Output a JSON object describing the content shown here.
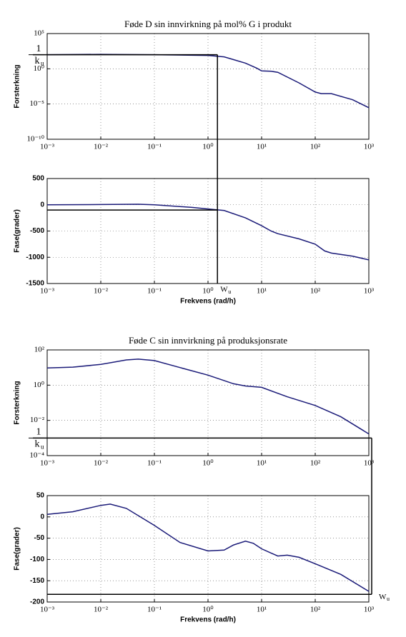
{
  "chart_data": [
    {
      "type": "line",
      "title": "Føde D sin innvirkning på mol% G i produkt",
      "ylabel": "Forsterkning",
      "xlog": true,
      "ylog": true,
      "grid": true,
      "color": "#1a1a78",
      "xlim": [
        0.001,
        1000
      ],
      "xticks": [
        {
          "value": 0.001,
          "label": "10⁻³"
        },
        {
          "value": 0.01,
          "label": "10⁻²"
        },
        {
          "value": 0.1,
          "label": "10⁻¹"
        },
        {
          "value": 1,
          "label": "10⁰"
        },
        {
          "value": 10,
          "label": "10¹"
        },
        {
          "value": 100,
          "label": "10²"
        },
        {
          "value": 1000,
          "label": "10³"
        }
      ],
      "ylim": [
        1e-10,
        100000
      ],
      "yticks": [
        {
          "value": 1e-10,
          "label": "10⁻¹⁰"
        },
        {
          "value": 1e-05,
          "label": "10⁻⁵"
        },
        {
          "value": 1,
          "label": "10⁰"
        },
        {
          "value": 100000,
          "label": "10⁵"
        }
      ],
      "x": [
        0.001,
        0.01,
        0.1,
        1,
        2,
        3,
        5,
        8,
        10,
        15,
        20,
        50,
        100,
        130,
        200,
        500,
        1000
      ],
      "values": [
        100,
        112,
        100,
        79,
        50,
        20,
        6.3,
        1.3,
        0.5,
        0.45,
        0.32,
        0.01,
        0.0005,
        0.0003,
        0.0003,
        4e-05,
        3e-06
      ],
      "ref": {
        "x": 1.5,
        "y": 100
      },
      "ref_label": {
        "num": "1",
        "den": "k",
        "sub": "u"
      }
    },
    {
      "type": "line",
      "xlabel": "Frekvens (rad/h)",
      "ylabel": "Fase(grader)",
      "xlog": true,
      "ylog": false,
      "grid": true,
      "color": "#1a1a78",
      "xlim": [
        0.001,
        1000
      ],
      "xticks": [
        {
          "value": 0.001,
          "label": "10⁻³"
        },
        {
          "value": 0.01,
          "label": "10⁻²"
        },
        {
          "value": 0.1,
          "label": "10⁻¹"
        },
        {
          "value": 1,
          "label": "10⁰"
        },
        {
          "value": 10,
          "label": "10¹"
        },
        {
          "value": 100,
          "label": "10²"
        },
        {
          "value": 1000,
          "label": "10³"
        }
      ],
      "ylim": [
        -1500,
        500
      ],
      "yticks": [
        -1500,
        -1000,
        -500,
        0,
        500
      ],
      "x": [
        0.001,
        0.01,
        0.05,
        0.1,
        0.5,
        1,
        2,
        5,
        10,
        15,
        20,
        50,
        100,
        150,
        200,
        500,
        1000
      ],
      "values": [
        0,
        5,
        10,
        0,
        -50,
        -80,
        -110,
        -250,
        -400,
        -500,
        -550,
        -650,
        -750,
        -880,
        -920,
        -980,
        -1050
      ],
      "ref": {
        "x": 1.5,
        "y": -100
      },
      "ref_label": {
        "main": "W",
        "sub": "u"
      }
    },
    {
      "type": "line",
      "title": "Føde C sin innvirkning på produksjonsrate",
      "ylabel": "Forsterkning",
      "xlog": true,
      "ylog": true,
      "grid": true,
      "color": "#1a1a78",
      "xlim": [
        0.001,
        1000
      ],
      "xticks": [
        {
          "value": 0.001,
          "label": "10⁻³"
        },
        {
          "value": 0.01,
          "label": "10⁻²"
        },
        {
          "value": 0.1,
          "label": "10⁻¹"
        },
        {
          "value": 1,
          "label": "10⁰"
        },
        {
          "value": 10,
          "label": "10¹"
        },
        {
          "value": 100,
          "label": "10²"
        },
        {
          "value": 1000,
          "label": "10³"
        }
      ],
      "ylim": [
        0.0001,
        100
      ],
      "yticks": [
        {
          "value": 0.0001,
          "label": "10⁻⁴"
        },
        {
          "value": 0.01,
          "label": "10⁻²"
        },
        {
          "value": 1,
          "label": "10⁰"
        },
        {
          "value": 100,
          "label": "10²"
        }
      ],
      "x": [
        0.001,
        0.003,
        0.01,
        0.03,
        0.05,
        0.1,
        0.3,
        1,
        3,
        5,
        10,
        30,
        100,
        300,
        1000
      ],
      "values": [
        9.5,
        10.5,
        15,
        27,
        30,
        25,
        10,
        3.7,
        1.2,
        0.9,
        0.75,
        0.22,
        0.07,
        0.016,
        0.0017
      ],
      "ref": {
        "x": 1000,
        "y": 0.001
      },
      "ref_label": {
        "num": "1",
        "den": "k",
        "sub": "u"
      }
    },
    {
      "type": "line",
      "xlabel": "Frekvens (rad/h)",
      "ylabel": "Fase(grader)",
      "xlog": true,
      "ylog": false,
      "grid": true,
      "color": "#1a1a78",
      "xlim": [
        0.001,
        1000
      ],
      "xticks": [
        {
          "value": 0.001,
          "label": "10⁻³"
        },
        {
          "value": 0.01,
          "label": "10⁻²"
        },
        {
          "value": 0.1,
          "label": "10⁻¹"
        },
        {
          "value": 1,
          "label": "10⁰"
        },
        {
          "value": 10,
          "label": "10¹"
        },
        {
          "value": 100,
          "label": "10²"
        },
        {
          "value": 1000,
          "label": "10³"
        }
      ],
      "ylim": [
        -200,
        50
      ],
      "yticks": [
        -200,
        -150,
        -100,
        -50,
        0,
        50
      ],
      "x": [
        0.001,
        0.003,
        0.01,
        0.015,
        0.03,
        0.1,
        0.3,
        1,
        2,
        3,
        5,
        7,
        10,
        20,
        30,
        50,
        100,
        300,
        1000
      ],
      "values": [
        6,
        12,
        27,
        30,
        20,
        -20,
        -60,
        -80,
        -78,
        -66,
        -57,
        -62,
        -75,
        -92,
        -90,
        -95,
        -110,
        -135,
        -175
      ],
      "ref": {
        "x": 1000,
        "y": -182
      },
      "ref_label": {
        "main": "W",
        "sub": "u"
      }
    }
  ]
}
